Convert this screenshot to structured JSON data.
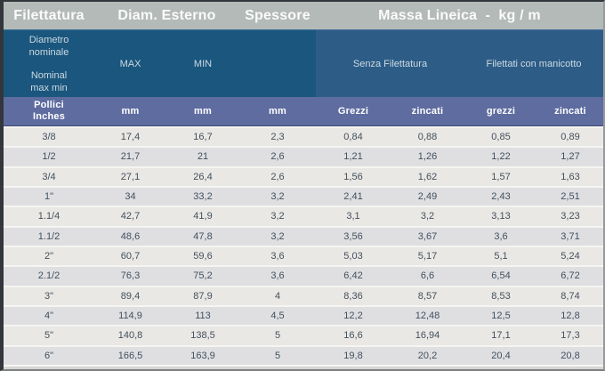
{
  "header": {
    "filettatura": "Filettatura",
    "diam_esterno": "Diam. Esterno",
    "spessore": "Spessore",
    "massa_lineica": "Massa Lineica  -  kg / m"
  },
  "subheader": {
    "diametro_nominale": [
      "Diametro",
      "nominale"
    ],
    "nominal_max_min": [
      "Nominal",
      "max min"
    ],
    "max": "MAX",
    "min": "MIN",
    "senza_filettatura": "Senza Filettatura",
    "filettati_con_manicotto": "Filettati con manicotto"
  },
  "units_row": {
    "pollici": [
      "Pollici",
      "Inches"
    ],
    "mm_max": "mm",
    "mm_min": "mm",
    "mm_spessore": "mm",
    "grezzi_senza": "Grezzi",
    "zincati_senza": "zincati",
    "grezzi_filettati": "grezzi",
    "zincati_filettati": "zincati"
  },
  "table": {
    "rows": [
      [
        "3/8",
        "17,4",
        "16,7",
        "2,3",
        "0,84",
        "0,88",
        "0,85",
        "0,89"
      ],
      [
        "1/2",
        "21,7",
        "21",
        "2,6",
        "1,21",
        "1,26",
        "1,22",
        "1,27"
      ],
      [
        "3/4",
        "27,1",
        "26,4",
        "2,6",
        "1,56",
        "1,62",
        "1,57",
        "1,63"
      ],
      [
        "1\"",
        "34",
        "33,2",
        "3,2",
        "2,41",
        "2,49",
        "2,43",
        "2,51"
      ],
      [
        "1.1/4",
        "42,7",
        "41,9",
        "3,2",
        "3,1",
        "3,2",
        "3,13",
        "3,23"
      ],
      [
        "1.1/2",
        "48,6",
        "47,8",
        "3,2",
        "3,56",
        "3,67",
        "3,6",
        "3,71"
      ],
      [
        "2\"",
        "60,7",
        "59,6",
        "3,6",
        "5,03",
        "5,17",
        "5,1",
        "5,24"
      ],
      [
        "2.1/2",
        "76,3",
        "75,2",
        "3,6",
        "6,42",
        "6,6",
        "6,54",
        "6,72"
      ],
      [
        "3\"",
        "89,4",
        "87,9",
        "4",
        "8,36",
        "8,57",
        "8,53",
        "8,74"
      ],
      [
        "4\"",
        "114,9",
        "113",
        "4,5",
        "12,2",
        "12,48",
        "12,5",
        "12,8"
      ],
      [
        "5\"",
        "140,8",
        "138,5",
        "5",
        "16,6",
        "16,94",
        "17,1",
        "17,3"
      ],
      [
        "6\"",
        "166,5",
        "163,9",
        "5",
        "19,8",
        "20,2",
        "20,4",
        "20,8"
      ]
    ]
  },
  "colors": {
    "header_gray_bg": "#b4bab7",
    "header_text": "#fafbfa",
    "blue_left_bg": "#1a567d",
    "blue_right_bg": "#2d5d87",
    "blue_text": "#cdd9e2",
    "slate_bg": "#5e6ca0",
    "slate_text": "#ffffff",
    "row_light_bg": "#eae8e4",
    "row_dark_bg": "#dfdfe2",
    "data_text": "#42505e"
  }
}
